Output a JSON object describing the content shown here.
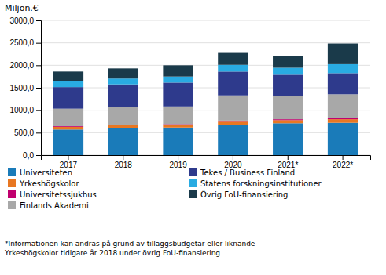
{
  "chart_data": {
    "type": "bar",
    "stacked": true,
    "y_label": "Miljon.€",
    "categories": [
      "2017",
      "2018",
      "2019",
      "2020",
      "2021*",
      "2022*"
    ],
    "series": [
      {
        "name": "Universiteten",
        "color": "#1a7bb9",
        "values": [
          570,
          600,
          615,
          680,
          710,
          720
        ]
      },
      {
        "name": "Yrkeshögskolor",
        "color": "#e87722",
        "values": [
          60,
          65,
          60,
          65,
          70,
          80
        ]
      },
      {
        "name": "Universitetssjukhus",
        "color": "#c0006e",
        "values": [
          15,
          15,
          15,
          25,
          20,
          25
        ]
      },
      {
        "name": "Finlands Akademi",
        "color": "#a8a8a8",
        "values": [
          390,
          395,
          395,
          560,
          510,
          530
        ]
      },
      {
        "name": "Tekes / Business Finland",
        "color": "#2e3a8c",
        "values": [
          480,
          500,
          530,
          530,
          480,
          470
        ]
      },
      {
        "name": "Statens forskningsinstitutioner",
        "color": "#29abe2",
        "values": [
          130,
          130,
          135,
          150,
          155,
          200
        ]
      },
      {
        "name": "Övrig FoU-finansiering",
        "color": "#1a3a4a",
        "values": [
          215,
          225,
          250,
          265,
          270,
          460
        ]
      }
    ],
    "ylim": [
      0,
      3000
    ],
    "yticks": [
      {
        "value": 0,
        "label": "0,0"
      },
      {
        "value": 500,
        "label": "500,0"
      },
      {
        "value": 1000,
        "label": "1000,0"
      },
      {
        "value": 1500,
        "label": "1500,0"
      },
      {
        "value": 2000,
        "label": "2000,0"
      },
      {
        "value": 2500,
        "label": "2500,0"
      },
      {
        "value": 3000,
        "label": "3000,0"
      }
    ],
    "grid": true,
    "legend": "bottom",
    "annotations": [
      "*Informationen kan ändras på grund av tilläggsbudgetar eller liknande",
      "Yrkeshögskolor tidigare år 2018 under övrig FoU-finansiering"
    ]
  }
}
